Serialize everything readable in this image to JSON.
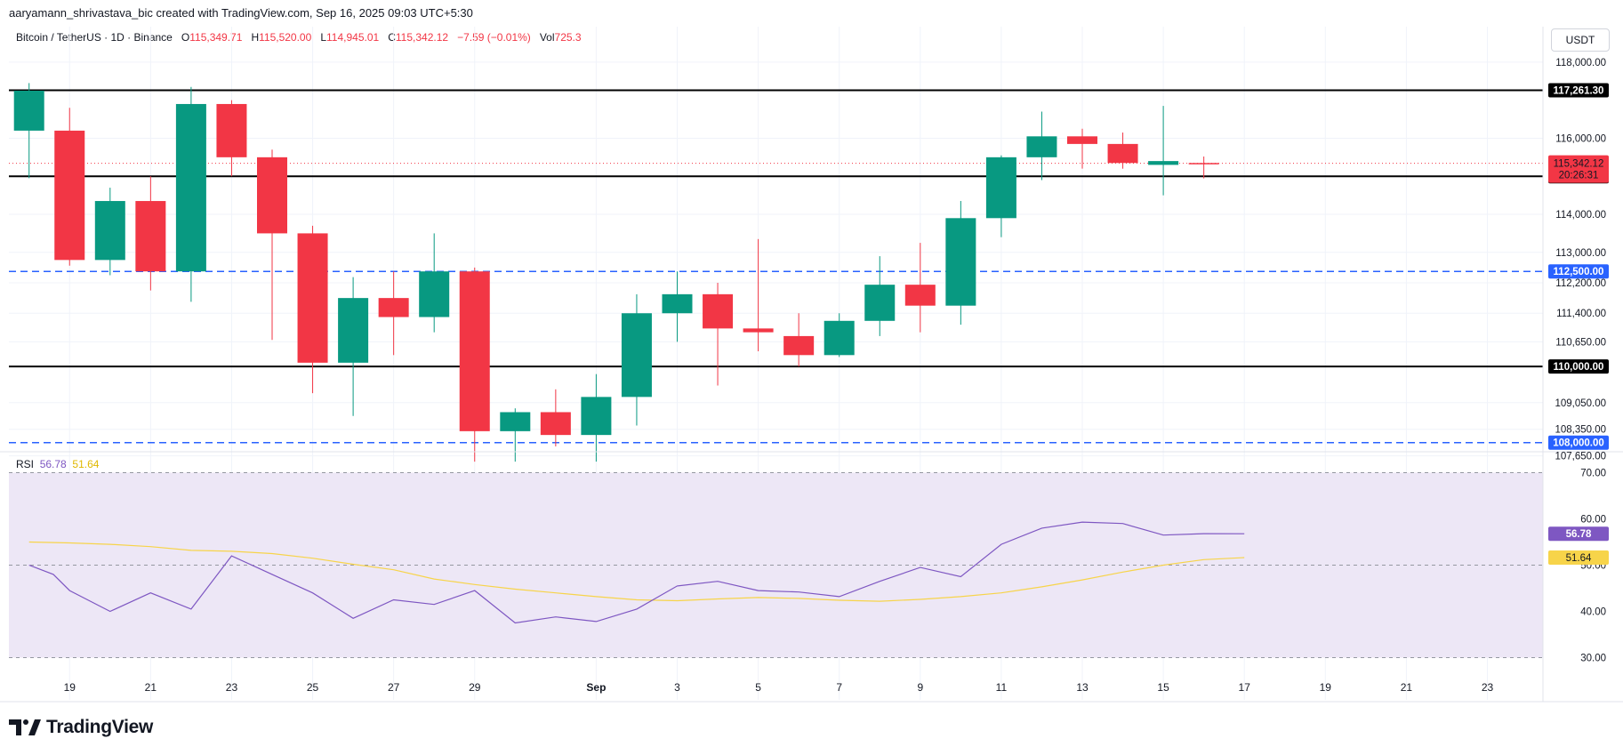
{
  "header": {
    "credit": "aaryamann_shrivastava_bic created with TradingView.com, Sep 16, 2025 09:03 UTC+5:30"
  },
  "legend": {
    "symbol": "Bitcoin / TetherUS · 1D · Binance",
    "o_label": "O",
    "o_value": "115,349.71",
    "h_label": "H",
    "h_value": "115,520.00",
    "l_label": "L",
    "l_value": "114,945.01",
    "c_label": "C",
    "c_value": "115,342.12",
    "change": "−7.59 (−0.01%)",
    "vol_label": "Vol",
    "vol_value": "725.3"
  },
  "currency": "USDT",
  "logo_text": "TradingView",
  "colors": {
    "up": "#089981",
    "down": "#f23645",
    "rsi": "#7e57c2",
    "rsi_ma": "#f7d44a",
    "rsi_bg": "#ede7f6",
    "support_dashed": "#2962ff",
    "level_line": "#000000"
  },
  "chart_data": [
    {
      "type": "candlestick",
      "title": "Bitcoin / TetherUS · 1D · Binance",
      "y_ticks": [
        "118,000.00",
        "116,000.00",
        "114,000.00",
        "113,000.00",
        "112,200.00",
        "111,400.00",
        "110,650.00",
        "109,050.00",
        "108,350.00",
        "107,650.00"
      ],
      "y_tick_values": [
        118000,
        116000,
        114000,
        113000,
        112200,
        111400,
        110650,
        109050,
        108350,
        107650
      ],
      "x_ticks": [
        "19",
        "21",
        "23",
        "25",
        "27",
        "29",
        "Sep",
        "3",
        "5",
        "7",
        "9",
        "11",
        "13",
        "15",
        "17",
        "19",
        "21",
        "23"
      ],
      "x_tick_days": [
        19,
        21,
        23,
        25,
        27,
        29,
        32,
        34,
        36,
        38,
        40,
        42,
        44,
        46,
        48,
        50,
        52,
        54
      ],
      "candles": [
        {
          "d": 18,
          "o": 116200,
          "h": 117450,
          "l": 114950,
          "c": 117250
        },
        {
          "d": 19,
          "o": 116200,
          "h": 116800,
          "l": 112650,
          "c": 112800
        },
        {
          "d": 20,
          "o": 112800,
          "h": 114700,
          "l": 112400,
          "c": 114350
        },
        {
          "d": 21,
          "o": 114350,
          "h": 115000,
          "l": 112000,
          "c": 112500
        },
        {
          "d": 22,
          "o": 112500,
          "h": 117350,
          "l": 111700,
          "c": 116900
        },
        {
          "d": 23,
          "o": 116900,
          "h": 117000,
          "l": 115000,
          "c": 115500
        },
        {
          "d": 24,
          "o": 115500,
          "h": 115700,
          "l": 110700,
          "c": 113500
        },
        {
          "d": 25,
          "o": 113500,
          "h": 113700,
          "l": 109300,
          "c": 110100
        },
        {
          "d": 26,
          "o": 110100,
          "h": 112350,
          "l": 108700,
          "c": 111800
        },
        {
          "d": 27,
          "o": 111800,
          "h": 112500,
          "l": 110300,
          "c": 111300
        },
        {
          "d": 28,
          "o": 111300,
          "h": 113500,
          "l": 110900,
          "c": 112500
        },
        {
          "d": 29,
          "o": 112500,
          "h": 112600,
          "l": 107500,
          "c": 108300
        },
        {
          "d": 30,
          "o": 108300,
          "h": 108900,
          "l": 107500,
          "c": 108800
        },
        {
          "d": 31,
          "o": 108800,
          "h": 109400,
          "l": 107900,
          "c": 108200
        },
        {
          "d": 32,
          "o": 108200,
          "h": 109800,
          "l": 107500,
          "c": 109200
        },
        {
          "d": 33,
          "o": 109200,
          "h": 111900,
          "l": 108450,
          "c": 111400
        },
        {
          "d": 34,
          "o": 111400,
          "h": 112500,
          "l": 110650,
          "c": 111900
        },
        {
          "d": 35,
          "o": 111900,
          "h": 112200,
          "l": 109500,
          "c": 111000
        },
        {
          "d": 36,
          "o": 111000,
          "h": 113350,
          "l": 110400,
          "c": 110900
        },
        {
          "d": 37,
          "o": 110800,
          "h": 111400,
          "l": 110000,
          "c": 110300
        },
        {
          "d": 38,
          "o": 110300,
          "h": 111400,
          "l": 110250,
          "c": 111200
        },
        {
          "d": 39,
          "o": 111200,
          "h": 112900,
          "l": 110800,
          "c": 112150
        },
        {
          "d": 40,
          "o": 112150,
          "h": 113250,
          "l": 110900,
          "c": 111600
        },
        {
          "d": 41,
          "o": 111600,
          "h": 114350,
          "l": 111100,
          "c": 113900
        },
        {
          "d": 42,
          "o": 113900,
          "h": 115550,
          "l": 113400,
          "c": 115500
        },
        {
          "d": 43,
          "o": 115500,
          "h": 116700,
          "l": 114900,
          "c": 116050
        },
        {
          "d": 44,
          "o": 116050,
          "h": 116250,
          "l": 115200,
          "c": 115850
        },
        {
          "d": 45,
          "o": 115850,
          "h": 116150,
          "l": 115200,
          "c": 115350
        },
        {
          "d": 46,
          "o": 115300,
          "h": 116850,
          "l": 114500,
          "c": 115400
        },
        {
          "d": 47,
          "o": 115349.71,
          "h": 115520,
          "l": 114945.01,
          "c": 115342.12
        }
      ],
      "levels": [
        {
          "value": 117261.3,
          "label": "117,261.30",
          "style": "solid"
        },
        {
          "value": 115000.0,
          "label": "115,000.00",
          "style": "solid"
        },
        {
          "value": 112500.0,
          "label": "112,500.00",
          "style": "dashed"
        },
        {
          "value": 110000.0,
          "label": "110,000.00",
          "style": "solid"
        },
        {
          "value": 108000.0,
          "label": "108,000.00",
          "style": "dashed"
        }
      ],
      "last_price": {
        "value": 115342.12,
        "label": "115,342.12",
        "countdown": "20:26:31"
      }
    },
    {
      "type": "line",
      "title": "RSI",
      "rsi_label": "RSI",
      "rsi_value": "56.78",
      "ma_value": "51.64",
      "y_ticks": [
        "70.00",
        "60.00",
        "50.00",
        "40.00",
        "30.00"
      ],
      "y_tick_values": [
        70,
        60,
        50,
        40,
        30
      ],
      "band": [
        30,
        70
      ],
      "mid": 50,
      "series": [
        {
          "name": "RSI",
          "values": [
            [
              18,
              50
            ],
            [
              18.6,
              48
            ],
            [
              19,
              44.5
            ],
            [
              20,
              40
            ],
            [
              21,
              44
            ],
            [
              22,
              40.5
            ],
            [
              23,
              52
            ],
            [
              24,
              48
            ],
            [
              25,
              44
            ],
            [
              26,
              38.5
            ],
            [
              27,
              42.5
            ],
            [
              28,
              41.5
            ],
            [
              29,
              44.5
            ],
            [
              30,
              37.5
            ],
            [
              31,
              38.8
            ],
            [
              32,
              37.8
            ],
            [
              33,
              40.5
            ],
            [
              34,
              45.5
            ],
            [
              35,
              46.5
            ],
            [
              36,
              44.5
            ],
            [
              37,
              44.2
            ],
            [
              38,
              43.2
            ],
            [
              39,
              46.5
            ],
            [
              40,
              49.5
            ],
            [
              41,
              47.5
            ],
            [
              42,
              54.5
            ],
            [
              43,
              58
            ],
            [
              44,
              59.3
            ],
            [
              45,
              59
            ],
            [
              46,
              56.5
            ],
            [
              47,
              56.8
            ],
            [
              48,
              56.78
            ]
          ]
        },
        {
          "name": "RSI-based MA",
          "values": [
            [
              18,
              55
            ],
            [
              19,
              54.8
            ],
            [
              20,
              54.5
            ],
            [
              21,
              54
            ],
            [
              22,
              53.2
            ],
            [
              23,
              53
            ],
            [
              24,
              52.5
            ],
            [
              25,
              51.5
            ],
            [
              26,
              50.2
            ],
            [
              27,
              49
            ],
            [
              28,
              47
            ],
            [
              29,
              45.8
            ],
            [
              30,
              44.8
            ],
            [
              31,
              44
            ],
            [
              32,
              43.2
            ],
            [
              33,
              42.5
            ],
            [
              34,
              42.3
            ],
            [
              35,
              42.7
            ],
            [
              36,
              43
            ],
            [
              37,
              42.8
            ],
            [
              38,
              42.4
            ],
            [
              39,
              42.2
            ],
            [
              40,
              42.6
            ],
            [
              41,
              43.2
            ],
            [
              42,
              44
            ],
            [
              43,
              45.3
            ],
            [
              44,
              46.8
            ],
            [
              45,
              48.5
            ],
            [
              46,
              50
            ],
            [
              47,
              51.2
            ],
            [
              48,
              51.64
            ]
          ]
        }
      ]
    }
  ]
}
